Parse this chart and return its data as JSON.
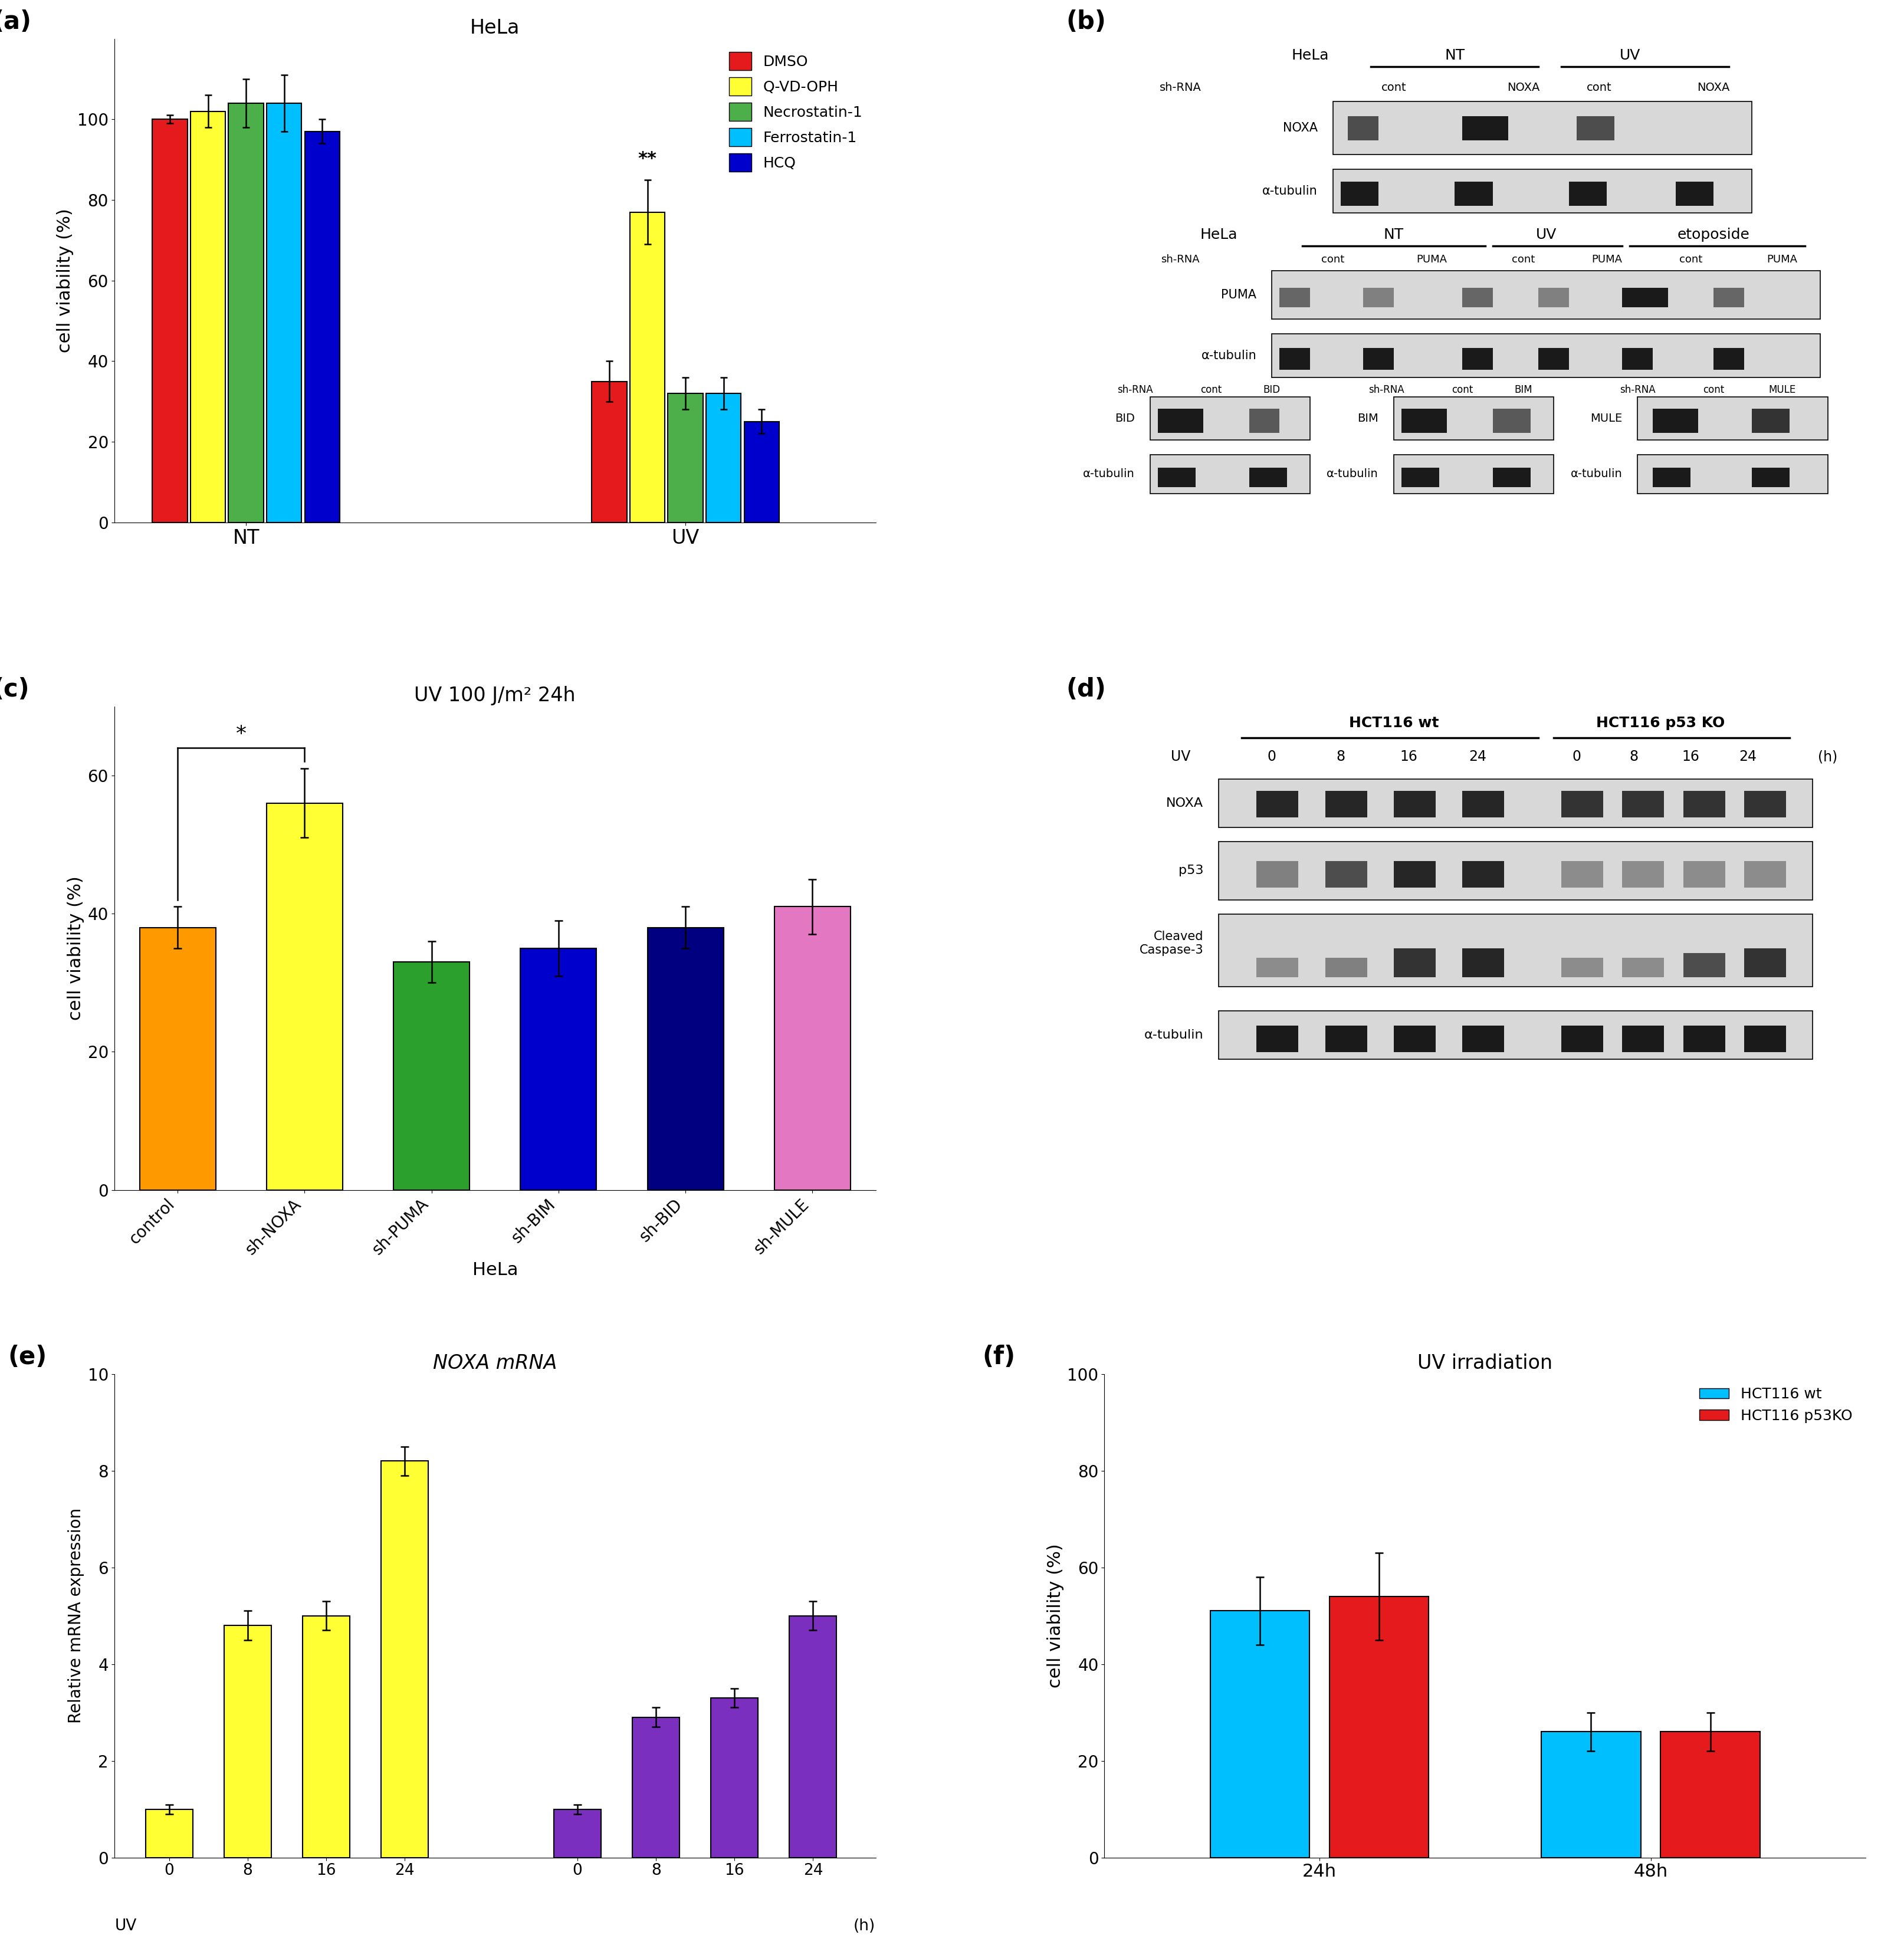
{
  "panel_a": {
    "title": "HeLa",
    "ylabel": "cell viability (%)",
    "groups": [
      "NT",
      "UV"
    ],
    "conditions": [
      "DMSO",
      "Q-VD-OPH",
      "Necrostatin-1",
      "Ferrostatin-1",
      "HCQ"
    ],
    "colors": [
      "#e41a1c",
      "#ffff33",
      "#4daf4a",
      "#00bfff",
      "#0000cd"
    ],
    "nt_values": [
      100,
      102,
      104,
      104,
      97
    ],
    "nt_errors": [
      1,
      4,
      6,
      7,
      3
    ],
    "uv_values": [
      35,
      77,
      32,
      32,
      25
    ],
    "uv_errors": [
      5,
      8,
      4,
      4,
      3
    ],
    "ylim": [
      0,
      120
    ],
    "yticks": [
      0,
      20,
      40,
      60,
      80,
      100
    ]
  },
  "panel_c": {
    "title": "UV 100 J/m² 24h",
    "ylabel": "cell viability (%)",
    "xlabel": "HeLa",
    "categories": [
      "control",
      "sh-NOXA",
      "sh-PUMA",
      "sh-BIM",
      "sh-BID",
      "sh-MULE"
    ],
    "colors": [
      "#ff9900",
      "#ffff33",
      "#2ca02c",
      "#0000cd",
      "#000080",
      "#e377c2"
    ],
    "values": [
      38,
      56,
      33,
      35,
      38,
      41
    ],
    "errors": [
      3,
      5,
      3,
      4,
      3,
      4
    ],
    "ylim": [
      0,
      70
    ],
    "yticks": [
      0,
      20,
      40,
      60
    ]
  },
  "panel_e": {
    "title": "NOXA mRNA",
    "ylabel": "Relative mRNA expression",
    "timepoints": [
      "0",
      "8",
      "16",
      "24"
    ],
    "colors_wt": "#ffff33",
    "colors_ko": "#7b2fbe",
    "wt_values": [
      1.0,
      4.8,
      5.0,
      8.2
    ],
    "wt_errors": [
      0.1,
      0.3,
      0.3,
      0.3
    ],
    "ko_values": [
      1.0,
      2.9,
      3.3,
      5.0
    ],
    "ko_errors": [
      0.1,
      0.2,
      0.2,
      0.3
    ],
    "ylim": [
      0,
      10
    ],
    "yticks": [
      0,
      2,
      4,
      6,
      8,
      10
    ]
  },
  "panel_f": {
    "title": "UV irradiation",
    "ylabel": "cell viability (%)",
    "timepoints": [
      "24h",
      "48h"
    ],
    "wt_values": [
      51,
      26
    ],
    "wt_errors": [
      7,
      4
    ],
    "ko_values": [
      54,
      26
    ],
    "ko_errors": [
      9,
      4
    ],
    "colors_wt": "#00bfff",
    "colors_ko": "#e41a1c",
    "ylim": [
      0,
      100
    ],
    "yticks": [
      0,
      20,
      40,
      60,
      80,
      100
    ],
    "legend_wt": "HCT116 wt",
    "legend_ko": "HCT116 p53KO"
  }
}
